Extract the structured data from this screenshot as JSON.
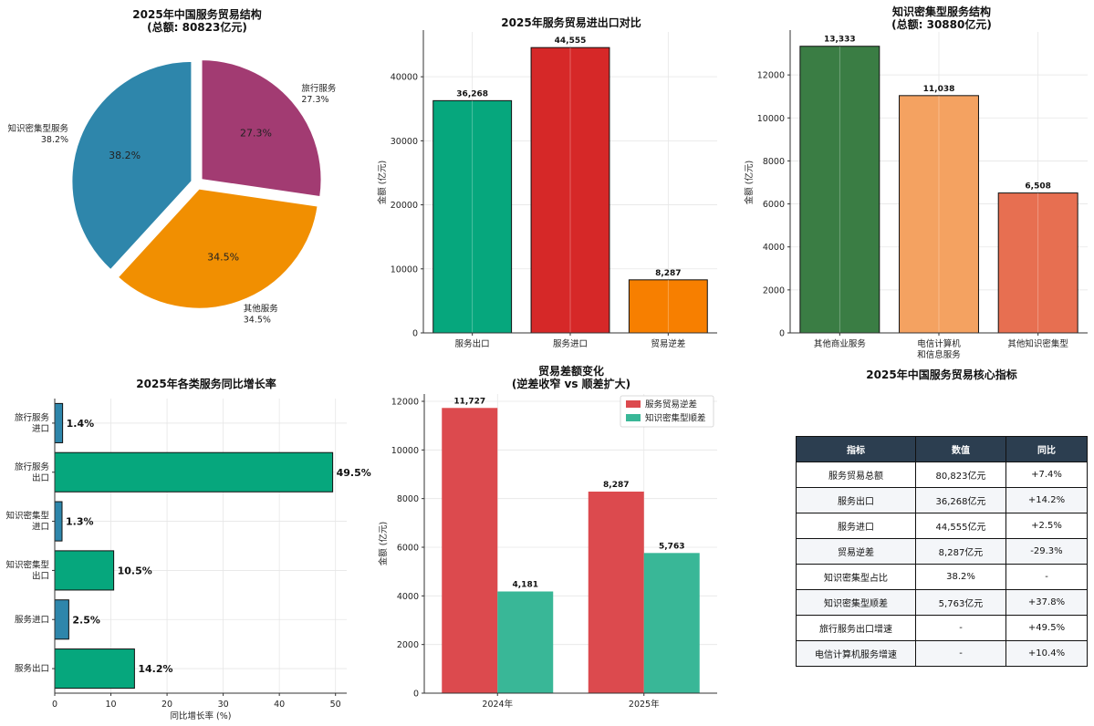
{
  "chart_data": [
    {
      "type": "pie",
      "title": "2025年中国服务贸易结构",
      "subtitle": "(总额: 80823亿元)",
      "slices": [
        {
          "label": "知识密集型服务",
          "value": 38.2,
          "pct": "38.2%",
          "color": "#2e86ab"
        },
        {
          "label": "其他服务",
          "value": 34.5,
          "pct": "34.5%",
          "color": "#f18f01"
        },
        {
          "label": "旅行服务",
          "value": 27.3,
          "pct": "27.3%",
          "color": "#a23b72"
        }
      ]
    },
    {
      "type": "bar",
      "title": "2025年服务贸易进出口对比",
      "ylabel": "金额 (亿元)",
      "ylim": [
        0,
        47000
      ],
      "yticks": [
        0,
        10000,
        20000,
        30000,
        40000
      ],
      "categories": [
        "服务出口",
        "服务进口",
        "贸易逆差"
      ],
      "values": [
        36268,
        44555,
        8287
      ],
      "value_labels": [
        "36,268",
        "44,555",
        "8,287"
      ],
      "colors": [
        "#06a77d",
        "#d62828",
        "#f77f00"
      ]
    },
    {
      "type": "bar",
      "title": "知识密集型服务结构",
      "subtitle": "(总额: 30880亿元)",
      "ylabel": "金额 (亿元)",
      "ylim": [
        0,
        14000
      ],
      "yticks": [
        0,
        2000,
        4000,
        6000,
        8000,
        10000,
        12000
      ],
      "categories": [
        "其他商业服务",
        "电信计算机\n和信息服务",
        "其他知识密集型"
      ],
      "values": [
        13333,
        11038,
        6508
      ],
      "value_labels": [
        "13,333",
        "11,038",
        "6,508"
      ],
      "colors": [
        "#3a7d44",
        "#f4a261",
        "#e76f51"
      ]
    },
    {
      "type": "bar",
      "orientation": "horizontal",
      "title": "2025年各类服务同比增长率",
      "xlabel": "同比增长率 (%)",
      "xlim": [
        0,
        52
      ],
      "xticks": [
        0,
        10,
        20,
        30,
        40,
        50
      ],
      "categories": [
        "服务出口",
        "服务进口",
        "知识密集型\n出口",
        "知识密集型\n进口",
        "旅行服务\n出口",
        "旅行服务\n进口"
      ],
      "values": [
        14.2,
        2.5,
        10.5,
        1.3,
        49.5,
        1.4
      ],
      "value_labels": [
        "14.2%",
        "2.5%",
        "10.5%",
        "1.3%",
        "49.5%",
        "1.4%"
      ],
      "colors": [
        "#06a77d",
        "#2e86ab",
        "#06a77d",
        "#2e86ab",
        "#06a77d",
        "#2e86ab"
      ]
    },
    {
      "type": "bar",
      "title": "贸易差额变化",
      "subtitle": "(逆差收窄 vs 顺差扩大)",
      "ylabel": "金额 (亿元)",
      "ylim": [
        0,
        12300
      ],
      "yticks": [
        0,
        2000,
        4000,
        6000,
        8000,
        10000,
        12000
      ],
      "categories": [
        "2024年",
        "2025年"
      ],
      "series": [
        {
          "name": "服务贸易逆差",
          "values": [
            11727,
            8287
          ],
          "labels": [
            "11,727",
            "8,287"
          ],
          "color": "#dc4a4e"
        },
        {
          "name": "知识密集型顺差",
          "values": [
            4181,
            5763
          ],
          "labels": [
            "4,181",
            "5,763"
          ],
          "color": "#39b797"
        }
      ],
      "legend": "top-right"
    },
    {
      "type": "table",
      "title": "2025年中国服务贸易核心指标",
      "columns": [
        "指标",
        "数值",
        "同比"
      ],
      "rows": [
        [
          "服务贸易总额",
          "80,823亿元",
          "+7.4%"
        ],
        [
          "服务出口",
          "36,268亿元",
          "+14.2%"
        ],
        [
          "服务进口",
          "44,555亿元",
          "+2.5%"
        ],
        [
          "贸易逆差",
          "8,287亿元",
          "-29.3%"
        ],
        [
          "知识密集型占比",
          "38.2%",
          "-"
        ],
        [
          "知识密集型顺差",
          "5,763亿元",
          "+37.8%"
        ],
        [
          "旅行服务出口增速",
          "-",
          "+49.5%"
        ],
        [
          "电信计算机服务增速",
          "-",
          "+10.4%"
        ]
      ]
    }
  ]
}
